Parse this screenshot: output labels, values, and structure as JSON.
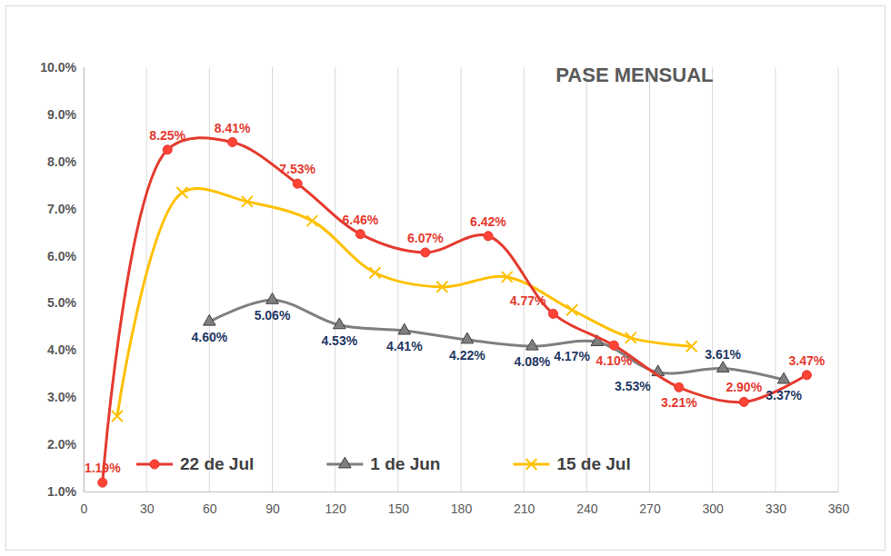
{
  "chart_data": {
    "type": "line",
    "title": "PASE MENSUAL",
    "xlim": [
      0,
      360
    ],
    "xticks": [
      0,
      30,
      60,
      90,
      120,
      150,
      180,
      210,
      240,
      270,
      300,
      330,
      360
    ],
    "ylim": [
      1,
      10
    ],
    "yticks": [
      {
        "value": 1,
        "label": "1.0%"
      },
      {
        "value": 2,
        "label": "2.0%"
      },
      {
        "value": 3,
        "label": "3.0%"
      },
      {
        "value": 4,
        "label": "4.0%"
      },
      {
        "value": 5,
        "label": "5.0%"
      },
      {
        "value": 6,
        "label": "6.0%"
      },
      {
        "value": 7,
        "label": "7.0%"
      },
      {
        "value": 8,
        "label": "8.0%"
      },
      {
        "value": 9,
        "label": "9.0%"
      },
      {
        "value": 10,
        "label": "10.0%"
      }
    ],
    "grid": "x",
    "legend": "bottom",
    "series": [
      {
        "name": "22 de Jul",
        "color": "#e53a2f",
        "marker": "circle",
        "data_labels": true,
        "x": [
          9,
          40,
          71,
          102,
          132,
          163,
          193,
          224,
          253,
          284,
          315,
          345
        ],
        "values": [
          1.19,
          8.25,
          8.41,
          7.53,
          6.46,
          6.07,
          6.42,
          4.77,
          4.1,
          3.21,
          2.9,
          3.47
        ],
        "value_labels": [
          "1.19%",
          "8.25%",
          "8.41%",
          "7.53%",
          "6.46%",
          "6.07%",
          "6.42%",
          "4.77%",
          "4.10%",
          "3.21%",
          "2.90%",
          "3.47%"
        ]
      },
      {
        "name": "1 de Jun",
        "color": "#7f7f7f",
        "marker": "triangle",
        "data_labels": true,
        "x": [
          60,
          90,
          122,
          153,
          183,
          214,
          245,
          274,
          305,
          334
        ],
        "values": [
          4.6,
          5.06,
          4.53,
          4.41,
          4.22,
          4.08,
          4.17,
          3.53,
          3.61,
          3.37
        ],
        "value_labels": [
          "4.60%",
          "5.06%",
          "4.53%",
          "4.41%",
          "4.22%",
          "4.08%",
          "4.17%",
          "3.53%",
          "3.61%",
          "3.37%"
        ]
      },
      {
        "name": "15 de Jul",
        "color": "#ffc000",
        "marker": "x",
        "data_labels": false,
        "x": [
          16,
          47,
          78,
          109,
          139,
          171,
          202,
          233,
          261,
          290
        ],
        "values": [
          2.6,
          7.34,
          7.15,
          6.74,
          5.64,
          5.34,
          5.55,
          4.85,
          4.26,
          4.08
        ]
      }
    ]
  }
}
